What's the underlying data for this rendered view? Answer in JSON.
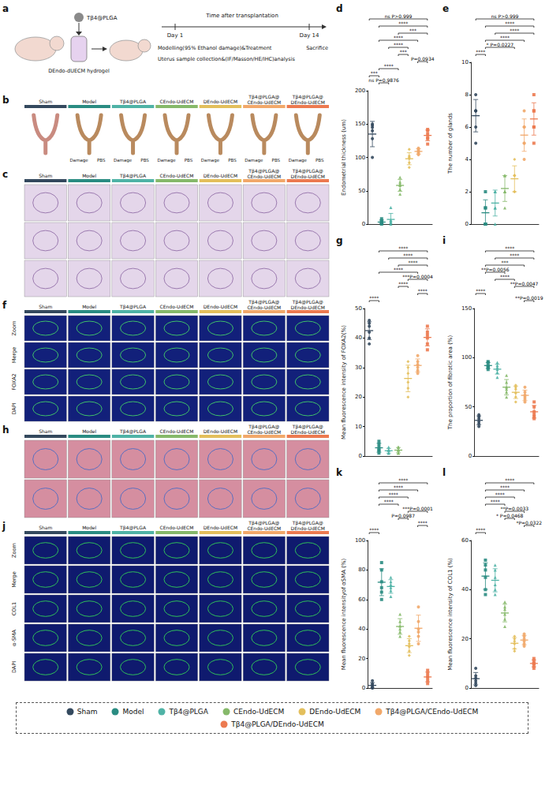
{
  "groups": {
    "names": [
      "Sham",
      "Model",
      "Tβ4@PLGA",
      "CEndo-UdECM",
      "DEndo-UdECM",
      "Tβ4@PLGA/CEndo-UdECM",
      "Tβ4@PLGA/DEndo-UdECM"
    ],
    "panel_names": [
      "Sham",
      "Model",
      "Tβ4@PLGA",
      "CEndo-UdECM",
      "DEndo-UdECM",
      "Tβ4@PLGA@CEndo-UdECM",
      "Tβ4@PLGA@DEndo-UdECM"
    ],
    "colors": [
      "#34495e",
      "#2a8c82",
      "#4fb3a6",
      "#86b96a",
      "#e3bf5c",
      "#f1a86a",
      "#ec7a50"
    ],
    "markers": [
      "circle",
      "square",
      "triangle",
      "triangle",
      "diamond",
      "circle",
      "square"
    ]
  },
  "legend": "bottom",
  "panels": {
    "a": {
      "letter": "a",
      "drug": "Tβ4@PLGA",
      "hydrogel": "DEndo-dUECM hydrogel",
      "timeline_title": "Time after transplantation",
      "day_start": "Day 1",
      "day_end": "Day 14",
      "step_start": "Modelling(95% Ethanol damage)&Treatment",
      "step_end": "Sacrifice",
      "analysis": "Uterus sample collection&(IF/Masson/HE/IHC)analysis"
    },
    "b": {
      "letter": "b",
      "labels": [
        "Damage",
        "PBS"
      ]
    },
    "c": {
      "letter": "c"
    },
    "f": {
      "letter": "f",
      "rows": [
        "Zoom",
        "Merge",
        "FOXA2",
        "DAPI"
      ]
    },
    "h": {
      "letter": "h"
    },
    "j": {
      "letter": "j",
      "rows": [
        "Zoom",
        "Merge",
        "COL1",
        "α-SMA",
        "DAPI"
      ]
    }
  },
  "chart_data": [
    {
      "letter": "d",
      "type": "scatter",
      "y_label": "Endometrial thickness (um)",
      "ylim": [
        0,
        200
      ],
      "yticks": [
        0,
        50,
        100,
        150,
        200
      ],
      "tick_labels": "y",
      "grid": false,
      "values": [
        [
          150,
          140,
          128,
          100,
          145,
          148
        ],
        [
          5,
          2,
          0,
          8,
          1,
          3
        ],
        [
          2,
          5,
          25,
          0,
          3,
          6
        ],
        [
          45,
          52,
          58,
          63,
          60,
          70
        ],
        [
          85,
          92,
          100,
          98,
          112,
          102
        ],
        [
          104,
          108,
          110,
          112,
          106,
          114
        ],
        [
          120,
          128,
          135,
          142,
          130,
          140
        ]
      ],
      "mean": [
        135,
        3,
        7,
        58,
        98,
        109,
        133
      ],
      "sd": [
        19,
        3,
        9,
        9,
        9,
        4,
        8
      ],
      "brackets": [
        {
          "from": 0,
          "to": 6,
          "label": "ns P>0.999"
        },
        {
          "from": 1,
          "to": 6,
          "label": "****"
        },
        {
          "from": 3,
          "to": 6,
          "label": "***"
        },
        {
          "from": 1,
          "to": 5,
          "label": "****"
        },
        {
          "from": 2,
          "to": 4,
          "label": "****"
        },
        {
          "from": 3,
          "to": 4,
          "label": "***"
        },
        {
          "from": 5,
          "to": 6,
          "label": "P=0.0934"
        },
        {
          "from": 1,
          "to": 3,
          "label": "****"
        },
        {
          "from": 0,
          "to": 1,
          "label": "***"
        },
        {
          "from": 1,
          "to": 2,
          "label": "ns P=0.9876"
        }
      ]
    },
    {
      "letter": "e",
      "type": "scatter",
      "y_label": "The number of glands",
      "ylim": [
        0,
        10
      ],
      "yticks": [
        0,
        2,
        4,
        6,
        8,
        10
      ],
      "tick_labels": "y",
      "grid": false,
      "values": [
        [
          7,
          8,
          6,
          7,
          5,
          7
        ],
        [
          0,
          0,
          1,
          0,
          2,
          1
        ],
        [
          1,
          2,
          2,
          0,
          1,
          2
        ],
        [
          2,
          3,
          2,
          1,
          3,
          2
        ],
        [
          3,
          2,
          3,
          4,
          3,
          2
        ],
        [
          5,
          6,
          5,
          4,
          6,
          7
        ],
        [
          6,
          7,
          8,
          6,
          5,
          7
        ]
      ],
      "mean": [
        6.7,
        0.7,
        1.3,
        2.2,
        2.8,
        5.5,
        6.5
      ],
      "sd": [
        1,
        0.8,
        0.8,
        0.8,
        0.8,
        1,
        1
      ],
      "brackets": [
        {
          "from": 0,
          "to": 6,
          "label": "ns P>0.999"
        },
        {
          "from": 1,
          "to": 6,
          "label": "****"
        },
        {
          "from": 2,
          "to": 6,
          "label": "****"
        },
        {
          "from": 1,
          "to": 5,
          "label": "****"
        },
        {
          "from": 1,
          "to": 4,
          "label": "* P=0.0227"
        },
        {
          "from": 0,
          "to": 1,
          "label": "****"
        }
      ]
    },
    {
      "letter": "g",
      "type": "scatter",
      "y_label": "Mean fluorescence intensity of FOXA2(%)",
      "ylim": [
        0,
        50
      ],
      "yticks": [
        0,
        10,
        20,
        30,
        40,
        50
      ],
      "tick_labels": "y",
      "grid": false,
      "values": [
        [
          44,
          40,
          46,
          42,
          38,
          45
        ],
        [
          3,
          2,
          5,
          1,
          4,
          2
        ],
        [
          2,
          1,
          3,
          2,
          1,
          2
        ],
        [
          2,
          1,
          3,
          2,
          3,
          1
        ],
        [
          25,
          30,
          20,
          28,
          32,
          23
        ],
        [
          30,
          32,
          28,
          34,
          31,
          29
        ],
        [
          40,
          42,
          36,
          44,
          38,
          41
        ]
      ],
      "mean": [
        42.5,
        2.8,
        1.8,
        2,
        26.3,
        30.7,
        40.2
      ],
      "sd": [
        3,
        1.5,
        0.8,
        0.9,
        4.5,
        2.2,
        2.9
      ],
      "brackets": [
        {
          "from": 1,
          "to": 6,
          "label": "****"
        },
        {
          "from": 2,
          "to": 6,
          "label": "****"
        },
        {
          "from": 3,
          "to": 6,
          "label": "****"
        },
        {
          "from": 1,
          "to": 5,
          "label": "****"
        },
        {
          "from": 4,
          "to": 6,
          "label": "***P=0.0004"
        },
        {
          "from": 3,
          "to": 4,
          "label": "****"
        },
        {
          "from": 5,
          "to": 6,
          "label": "****"
        },
        {
          "from": 0,
          "to": 1,
          "label": "****"
        }
      ]
    },
    {
      "letter": "i",
      "type": "scatter",
      "y_label": "The proportion of fibrotic area (%)",
      "ylim": [
        0,
        150
      ],
      "yticks": [
        0,
        50,
        100,
        150
      ],
      "tick_labels": "y",
      "grid": false,
      "values": [
        [
          35,
          40,
          30,
          38,
          33,
          42
        ],
        [
          90,
          95,
          92,
          88,
          96,
          91
        ],
        [
          85,
          92,
          80,
          95,
          88,
          90
        ],
        [
          70,
          60,
          82,
          65,
          75,
          68
        ],
        [
          60,
          70,
          55,
          68,
          64,
          72
        ],
        [
          55,
          60,
          65,
          58,
          62,
          70
        ],
        [
          40,
          45,
          50,
          42,
          55,
          38
        ]
      ],
      "mean": [
        36.3,
        92,
        88.3,
        70,
        64.8,
        61.7,
        45
      ],
      "sd": [
        4.5,
        3,
        5,
        7.8,
        6.3,
        5.3,
        6.4
      ],
      "brackets": [
        {
          "from": 1,
          "to": 6,
          "label": "****"
        },
        {
          "from": 2,
          "to": 6,
          "label": "****"
        },
        {
          "from": 1,
          "to": 5,
          "label": "***"
        },
        {
          "from": 1,
          "to": 3,
          "label": "**P=0.0056"
        },
        {
          "from": 2,
          "to": 4,
          "label": "****"
        },
        {
          "from": 4,
          "to": 6,
          "label": "**P=0.0047"
        },
        {
          "from": 0,
          "to": 1,
          "label": "****"
        },
        {
          "from": 5,
          "to": 6,
          "label": "**P=0.0019"
        }
      ]
    },
    {
      "letter": "k",
      "type": "scatter",
      "y_label": "Mean fluorescence intensityof αSMA (%)",
      "ylim": [
        0,
        100
      ],
      "yticks": [
        0,
        20,
        40,
        60,
        80,
        100
      ],
      "tick_labels": "y",
      "grid": false,
      "values": [
        [
          0,
          2,
          5,
          0,
          1,
          3
        ],
        [
          65,
          72,
          80,
          68,
          85,
          60
        ],
        [
          62,
          70,
          75,
          68,
          72,
          66
        ],
        [
          38,
          45,
          50,
          40,
          42,
          35
        ],
        [
          25,
          30,
          35,
          28,
          22,
          32
        ],
        [
          30,
          40,
          55,
          38,
          45,
          35
        ],
        [
          5,
          10,
          8,
          12,
          3,
          7
        ]
      ],
      "mean": [
        1.8,
        71.7,
        68.8,
        41.7,
        28.7,
        40.5,
        7.5
      ],
      "sd": [
        1.9,
        9.1,
        4.6,
        5.3,
        4.7,
        8.9,
        3.3
      ],
      "brackets": [
        {
          "from": 1,
          "to": 6,
          "label": "****"
        },
        {
          "from": 1,
          "to": 5,
          "label": "****"
        },
        {
          "from": 1,
          "to": 4,
          "label": "****"
        },
        {
          "from": 1,
          "to": 3,
          "label": "****"
        },
        {
          "from": 4,
          "to": 6,
          "label": "***P=0.0001"
        },
        {
          "from": 3,
          "to": 4,
          "label": "P=0.0987"
        },
        {
          "from": 5,
          "to": 6,
          "label": "****"
        },
        {
          "from": 0,
          "to": 1,
          "label": "****"
        }
      ]
    },
    {
      "letter": "l",
      "type": "scatter",
      "y_label": "Mean fluorescence intensity of COL1 (%)",
      "ylim": [
        0,
        60
      ],
      "yticks": [
        0,
        20,
        40,
        60
      ],
      "tick_labels": "y",
      "grid": false,
      "values": [
        [
          3,
          5,
          2,
          8,
          1,
          4
        ],
        [
          40,
          48,
          52,
          45,
          38,
          50
        ],
        [
          38,
          45,
          50,
          42,
          40,
          48
        ],
        [
          28,
          32,
          35,
          25,
          30,
          33
        ],
        [
          16,
          18,
          20,
          15,
          19,
          21
        ],
        [
          18,
          20,
          22,
          19,
          21,
          17
        ],
        [
          10,
          12,
          9,
          11,
          8,
          10
        ]
      ],
      "mean": [
        3.8,
        45.5,
        43.8,
        30.5,
        18.2,
        19.5,
        10
      ],
      "sd": [
        2.5,
        5.4,
        4.7,
        3.6,
        2.3,
        1.9,
        1.4
      ],
      "brackets": [
        {
          "from": 1,
          "to": 6,
          "label": "****"
        },
        {
          "from": 1,
          "to": 5,
          "label": "****"
        },
        {
          "from": 1,
          "to": 4,
          "label": "****"
        },
        {
          "from": 1,
          "to": 3,
          "label": "****"
        },
        {
          "from": 3,
          "to": 5,
          "label": "**P=0.0033"
        },
        {
          "from": 3,
          "to": 4,
          "label": "* P=0.0468"
        },
        {
          "from": 5,
          "to": 6,
          "label": "*P=0.0322"
        },
        {
          "from": 0,
          "to": 1,
          "label": "****"
        }
      ]
    }
  ]
}
